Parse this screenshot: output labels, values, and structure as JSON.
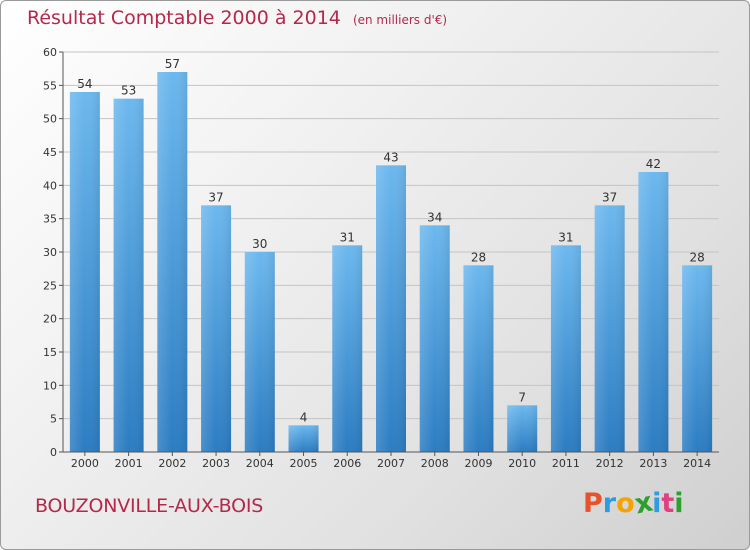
{
  "chart_data": {
    "type": "bar",
    "title": "Résultat Comptable 2000 à 2014",
    "subtitle": "(en milliers d'€)",
    "categories": [
      "2000",
      "2001",
      "2002",
      "2003",
      "2004",
      "2005",
      "2006",
      "2007",
      "2008",
      "2009",
      "2010",
      "2011",
      "2012",
      "2013",
      "2014"
    ],
    "values": [
      54,
      53,
      57,
      37,
      30,
      4,
      31,
      43,
      34,
      28,
      7,
      31,
      37,
      42,
      28
    ],
    "ylim": [
      0,
      60
    ],
    "yticks": [
      0,
      5,
      10,
      15,
      20,
      25,
      30,
      35,
      40,
      45,
      50,
      55,
      60
    ],
    "grid": true,
    "xlabel": "",
    "ylabel": ""
  },
  "location": "BOUZONVILLE-AUX-BOIS",
  "logo": {
    "letters": [
      "P",
      "r",
      "o",
      "x",
      "i",
      "t",
      "i"
    ],
    "colors": [
      "#e8512a",
      "#2f9be0",
      "#f5a300",
      "#2ca02c",
      "#2f9be0",
      "#e04080",
      "#2ca02c"
    ]
  },
  "colors": {
    "bar_top": "#6cb8ee",
    "bar_bottom": "#2b7cc2",
    "title": "#b5284a"
  }
}
